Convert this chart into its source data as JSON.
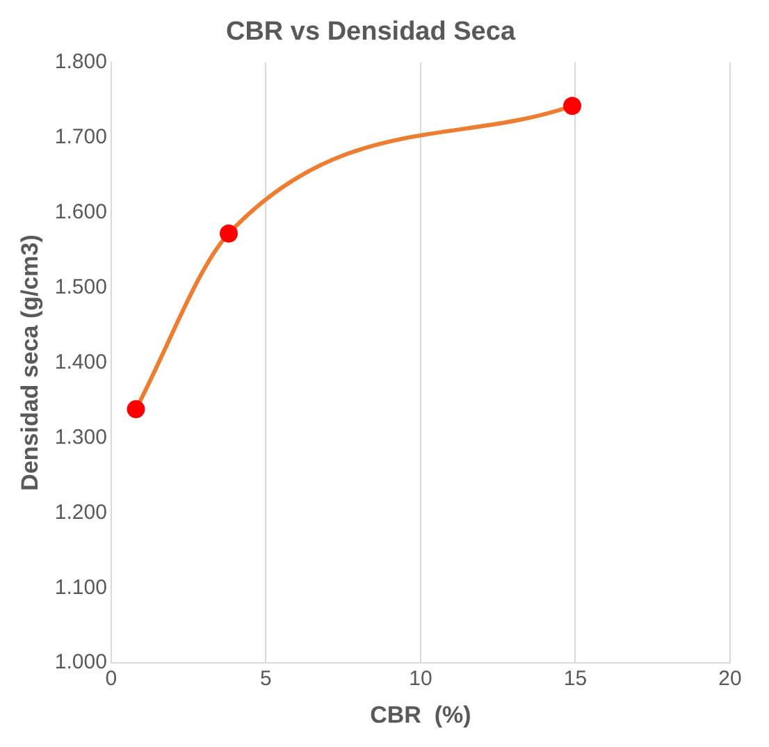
{
  "chart_data": {
    "type": "line",
    "title": "CBR vs Densidad Seca",
    "xlabel": "CBR  (%)",
    "ylabel": "Densidad seca (g/cm3)",
    "x": [
      0.8,
      3.8,
      14.9
    ],
    "series": [
      {
        "color": "#ed7d31",
        "values": [
          1.338,
          1.572,
          1.742
        ],
        "marker": "none"
      },
      {
        "type": "scatter",
        "color": "#ff0000",
        "values": [
          1.338,
          1.572,
          1.742
        ],
        "marker": "circle"
      }
    ],
    "xlim": [
      0,
      20
    ],
    "xticks": [
      0,
      5,
      10,
      15,
      20
    ],
    "ylim": [
      1,
      1.8
    ],
    "yticks": [
      {
        "value": 1,
        "label": "1.000"
      },
      {
        "value": 1.1,
        "label": "1.100"
      },
      {
        "value": 1.2,
        "label": "1.200"
      },
      {
        "value": 1.3,
        "label": "1.300"
      },
      {
        "value": 1.4,
        "label": "1.400"
      },
      {
        "value": 1.5,
        "label": "1.500"
      },
      {
        "value": 1.6,
        "label": "1.600"
      },
      {
        "value": 1.7,
        "label": "1.700"
      },
      {
        "value": 1.8,
        "label": "1.800"
      }
    ],
    "grid": "x"
  }
}
